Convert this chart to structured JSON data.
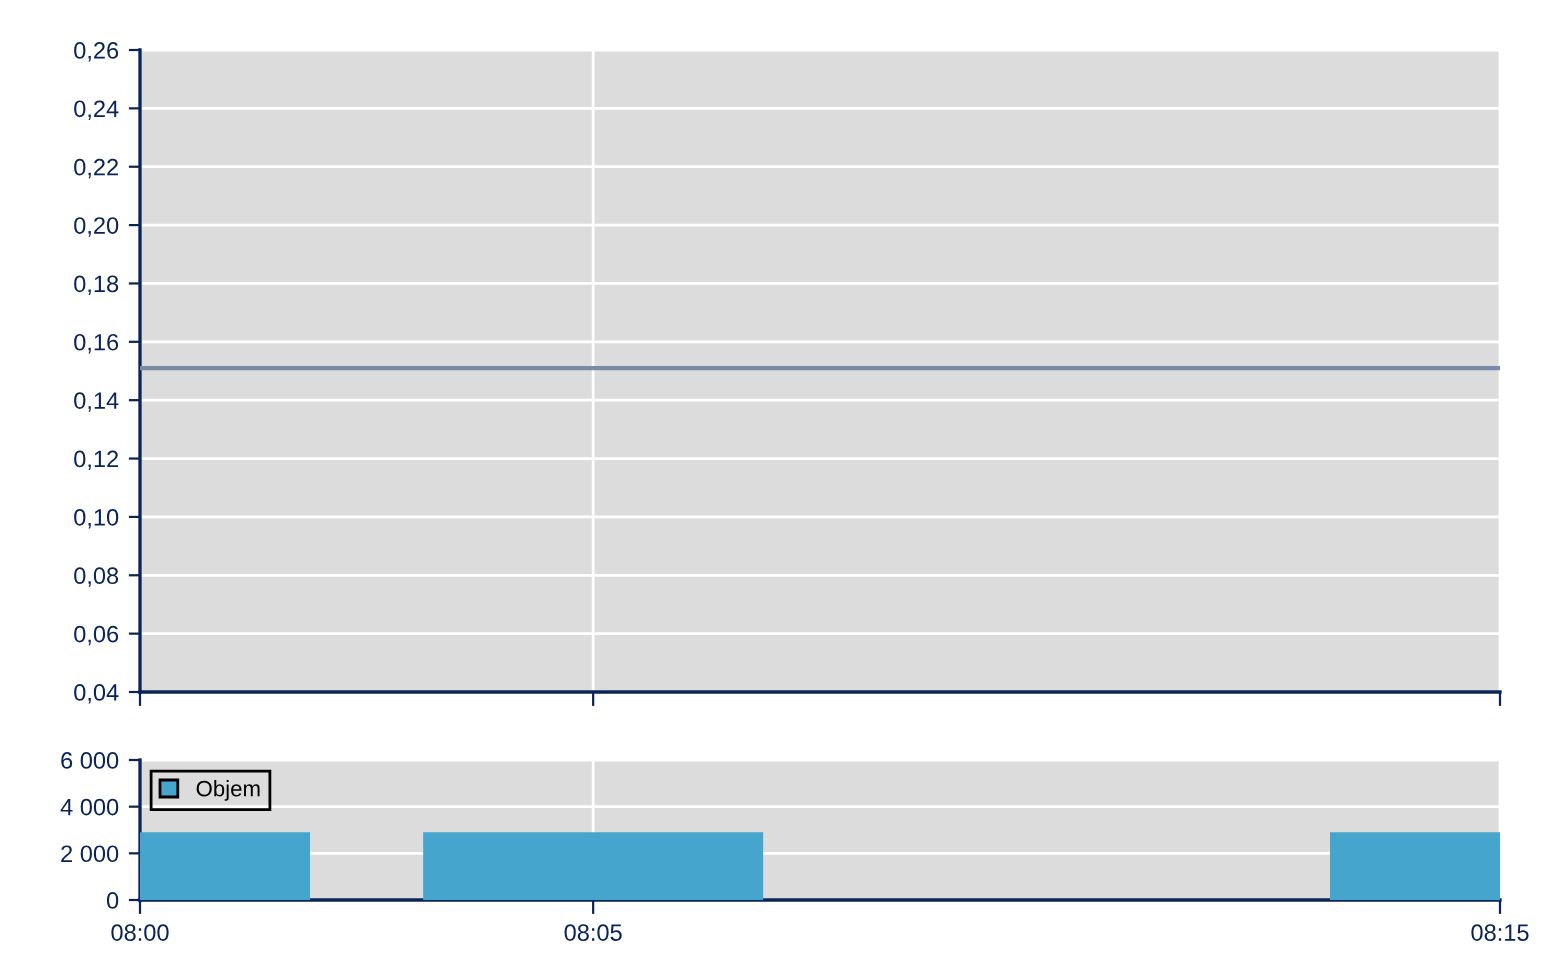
{
  "chart_data": [
    {
      "type": "line",
      "x": [
        8.0,
        8.25
      ],
      "series": [
        {
          "color": "#7a8aa8",
          "values": [
            0.151,
            0.151
          ]
        }
      ],
      "xlim": [
        8.0,
        8.25
      ],
      "xticks": [
        {
          "value": 8.0,
          "label": null
        },
        {
          "value": 8.0833,
          "label": null
        },
        {
          "value": 8.25,
          "label": null
        }
      ],
      "ylim": [
        0.04,
        0.26
      ],
      "yticks": [
        {
          "value": 0.04,
          "label": "0,04"
        },
        {
          "value": 0.06,
          "label": "0,06"
        },
        {
          "value": 0.08,
          "label": "0,08"
        },
        {
          "value": 0.1,
          "label": "0,10"
        },
        {
          "value": 0.12,
          "label": "0,12"
        },
        {
          "value": 0.14,
          "label": "0,14"
        },
        {
          "value": 0.16,
          "label": "0,16"
        },
        {
          "value": 0.18,
          "label": "0,18"
        },
        {
          "value": 0.2,
          "label": "0,20"
        },
        {
          "value": 0.22,
          "label": "0,22"
        },
        {
          "value": 0.24,
          "label": "0,24"
        },
        {
          "value": 0.26,
          "label": "0,26"
        }
      ],
      "grid": true,
      "tick_labels": "y",
      "marker": "none",
      "line_style": "solid"
    },
    {
      "type": "bar",
      "x": [
        8.0,
        8.0833,
        8.25
      ],
      "series": [
        {
          "name": "Objem",
          "color": "#46a5cd",
          "values": [
            2900,
            2900,
            2900
          ]
        }
      ],
      "xlim": [
        8.0,
        8.25
      ],
      "xticks": [
        {
          "value": 8.0,
          "label": "08:00"
        },
        {
          "value": 8.0833,
          "label": "08:05"
        },
        {
          "value": 8.25,
          "label": "08:15"
        }
      ],
      "ylim": [
        0,
        6000
      ],
      "yticks": [
        0,
        {
          "value": 2000,
          "label": "2 000"
        },
        {
          "value": 4000,
          "label": "4 000"
        },
        {
          "value": 6000,
          "label": "6 000"
        }
      ],
      "grid": true,
      "legend": "top left"
    }
  ]
}
